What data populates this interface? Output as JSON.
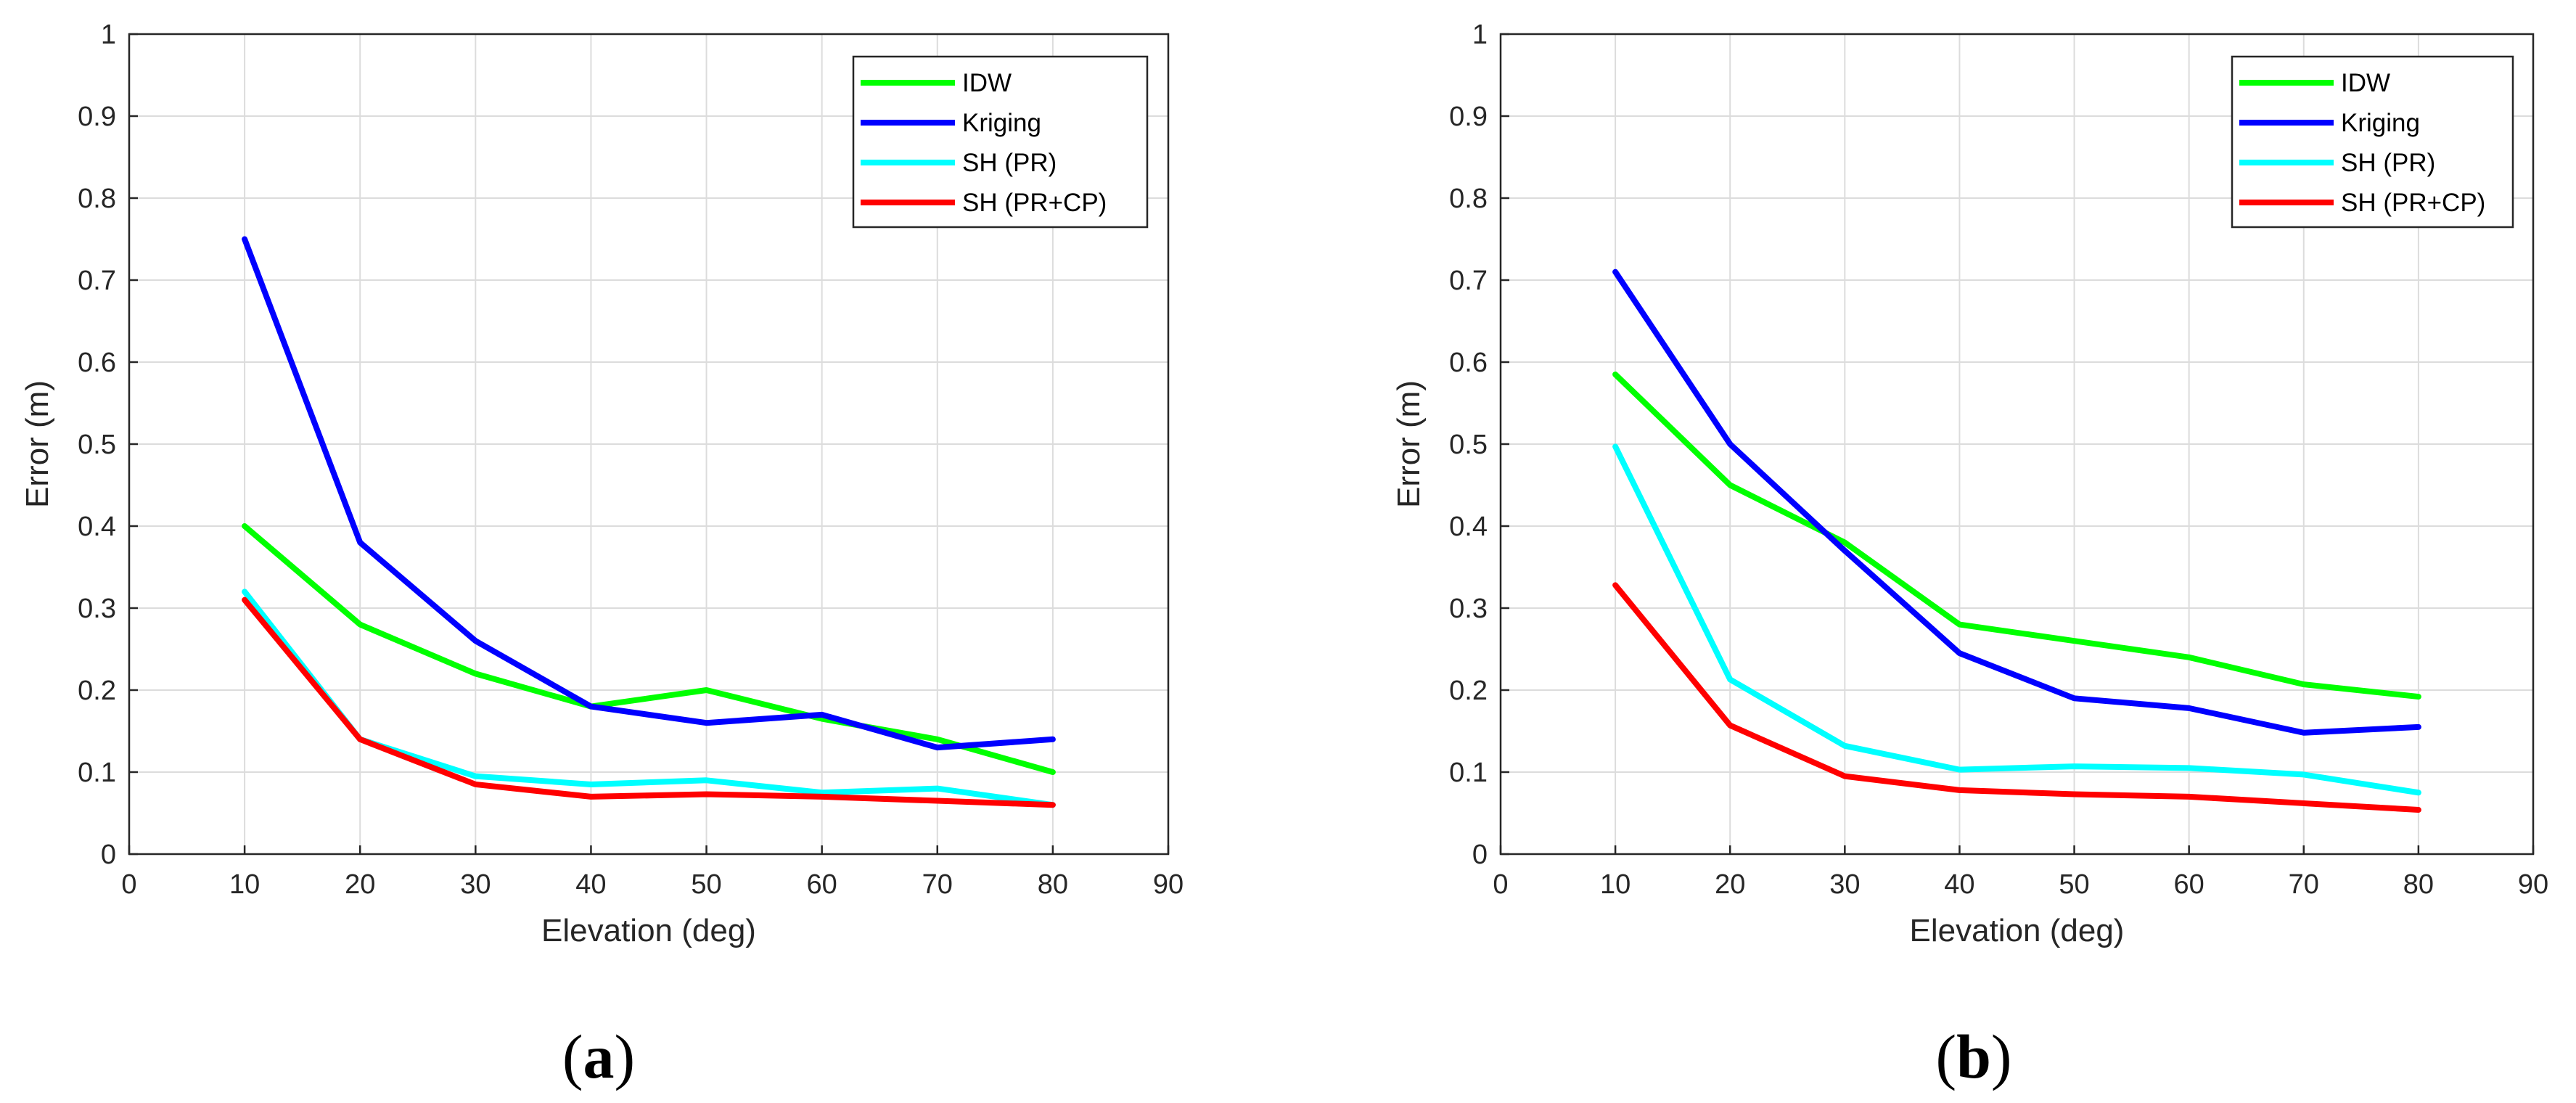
{
  "chart_data": [
    {
      "type": "line",
      "panel_label": "a",
      "title": "",
      "xlabel": "Elevation (deg)",
      "ylabel": "Error (m)",
      "xlim": [
        0,
        90
      ],
      "ylim": [
        0,
        1
      ],
      "xticks": [
        0,
        10,
        20,
        30,
        40,
        50,
        60,
        70,
        80,
        90
      ],
      "yticks": [
        0,
        0.1,
        0.2,
        0.3,
        0.4,
        0.5,
        0.6,
        0.7,
        0.8,
        0.9,
        1
      ],
      "grid": true,
      "legend_position": "top-right",
      "x": [
        10,
        20,
        30,
        40,
        50,
        60,
        70,
        80
      ],
      "series": [
        {
          "name": "IDW",
          "color": "#00ff00",
          "values": [
            0.4,
            0.28,
            0.22,
            0.18,
            0.2,
            0.165,
            0.14,
            0.1
          ]
        },
        {
          "name": "Kriging",
          "color": "#0000ff",
          "values": [
            0.75,
            0.38,
            0.26,
            0.18,
            0.16,
            0.17,
            0.13,
            0.14
          ]
        },
        {
          "name": "SH (PR)",
          "color": "#00ffff",
          "values": [
            0.32,
            0.14,
            0.095,
            0.085,
            0.09,
            0.075,
            0.08,
            0.06
          ]
        },
        {
          "name": "SH (PR+CP)",
          "color": "#ff0000",
          "values": [
            0.31,
            0.14,
            0.085,
            0.07,
            0.073,
            0.07,
            0.065,
            0.06
          ]
        }
      ]
    },
    {
      "type": "line",
      "panel_label": "b",
      "title": "",
      "xlabel": "Elevation (deg)",
      "ylabel": "Error (m)",
      "xlim": [
        0,
        90
      ],
      "ylim": [
        0,
        1
      ],
      "xticks": [
        0,
        10,
        20,
        30,
        40,
        50,
        60,
        70,
        80,
        90
      ],
      "yticks": [
        0,
        0.1,
        0.2,
        0.3,
        0.4,
        0.5,
        0.6,
        0.7,
        0.8,
        0.9,
        1
      ],
      "grid": true,
      "legend_position": "top-right",
      "x": [
        10,
        20,
        30,
        40,
        50,
        60,
        70,
        80
      ],
      "series": [
        {
          "name": "IDW",
          "color": "#00ff00",
          "values": [
            0.585,
            0.45,
            0.38,
            0.28,
            0.26,
            0.24,
            0.207,
            0.192
          ]
        },
        {
          "name": "Kriging",
          "color": "#0000ff",
          "values": [
            0.71,
            0.5,
            0.37,
            0.245,
            0.19,
            0.178,
            0.148,
            0.155
          ]
        },
        {
          "name": "SH (PR)",
          "color": "#00ffff",
          "values": [
            0.497,
            0.213,
            0.132,
            0.103,
            0.107,
            0.105,
            0.097,
            0.075
          ]
        },
        {
          "name": "SH (PR+CP)",
          "color": "#ff0000",
          "values": [
            0.328,
            0.157,
            0.095,
            0.078,
            0.073,
            0.07,
            0.062,
            0.054
          ]
        }
      ]
    }
  ]
}
